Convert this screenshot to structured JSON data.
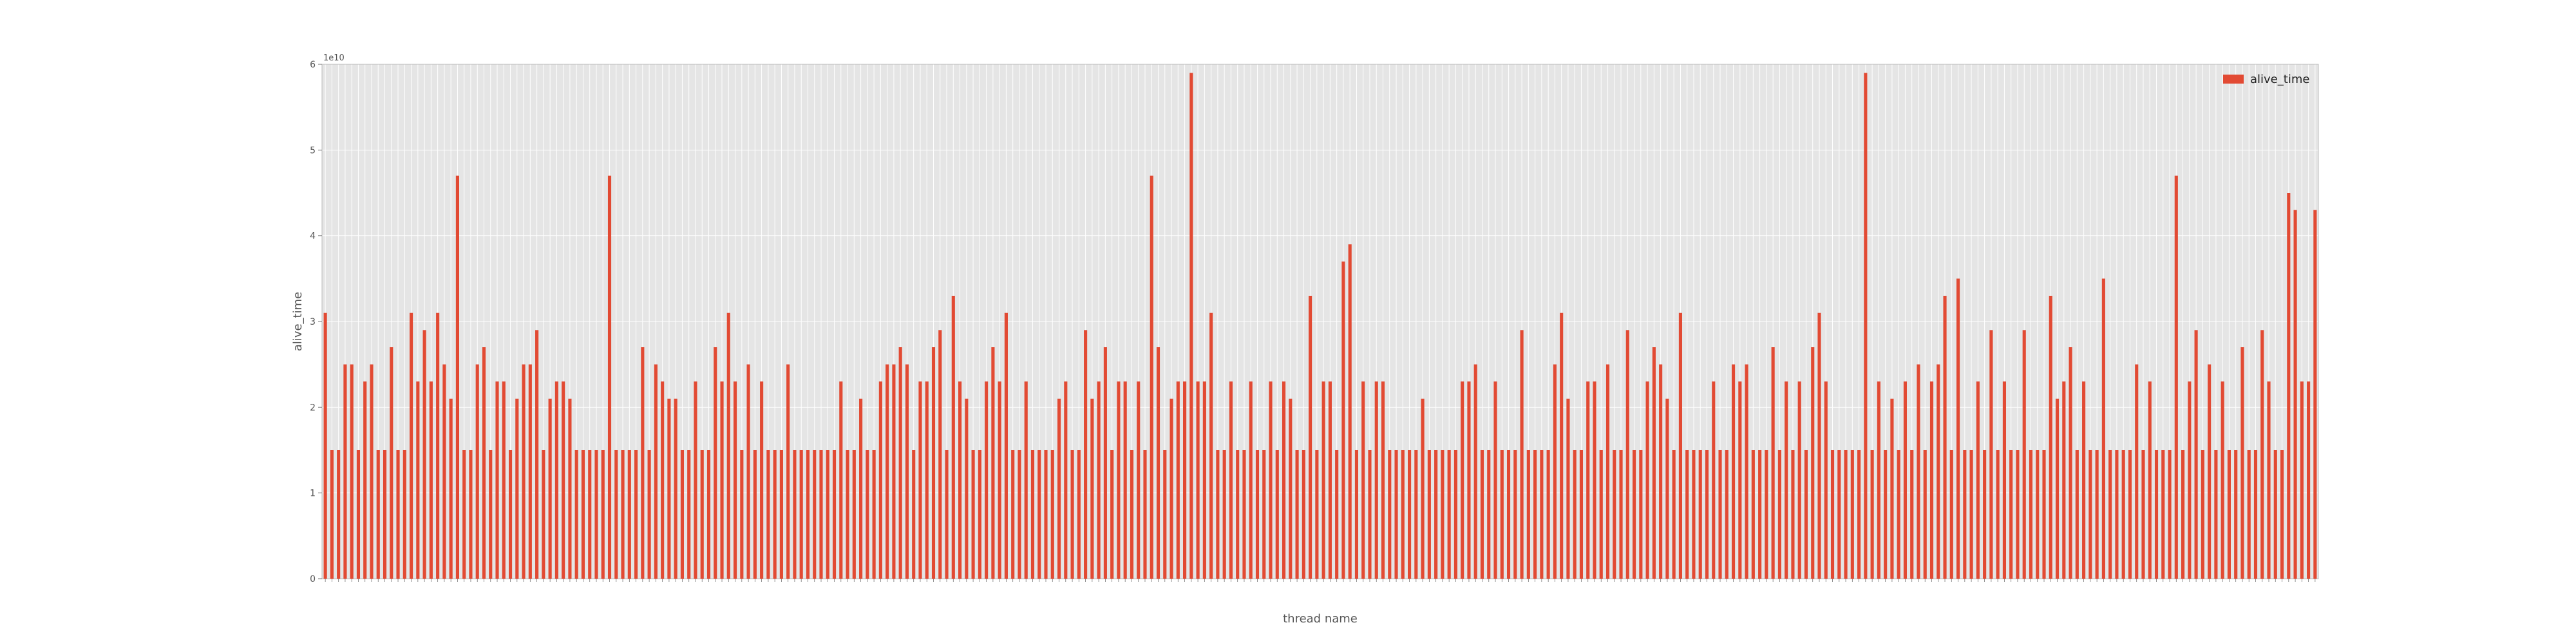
{
  "chart_data": {
    "type": "bar",
    "xlabel": "thread name",
    "ylabel": "alive_time",
    "offset_label": "1e10",
    "ylim": [
      0,
      6
    ],
    "yticks": [
      0,
      1,
      2,
      3,
      4,
      5,
      6
    ],
    "legend": {
      "position": "top-right"
    },
    "grid": true,
    "colors": {
      "bar": "#e24a33",
      "plot_bg": "#e5e5e5",
      "grid": "#ffffff",
      "spine": "#bbbbbb"
    },
    "series": [
      {
        "name": "alive_time",
        "values": [
          3.1,
          1.5,
          1.5,
          2.5,
          2.5,
          1.5,
          2.3,
          2.5,
          1.5,
          1.5,
          2.7,
          1.5,
          1.5,
          3.1,
          2.3,
          2.9,
          2.3,
          3.1,
          2.5,
          2.1,
          4.7,
          1.5,
          1.5,
          2.5,
          2.7,
          1.5,
          2.3,
          2.3,
          1.5,
          2.1,
          2.5,
          2.5,
          2.9,
          1.5,
          2.1,
          2.3,
          2.3,
          2.1,
          1.5,
          1.5,
          1.5,
          1.5,
          1.5,
          4.7,
          1.5,
          1.5,
          1.5,
          1.5,
          2.7,
          1.5,
          2.5,
          2.3,
          2.1,
          2.1,
          1.5,
          1.5,
          2.3,
          1.5,
          1.5,
          2.7,
          2.3,
          3.1,
          2.3,
          1.5,
          2.5,
          1.5,
          2.3,
          1.5,
          1.5,
          1.5,
          2.5,
          1.5,
          1.5,
          1.5,
          1.5,
          1.5,
          1.5,
          1.5,
          2.3,
          1.5,
          1.5,
          2.1,
          1.5,
          1.5,
          2.3,
          2.5,
          2.5,
          2.7,
          2.5,
          1.5,
          2.3,
          2.3,
          2.7,
          2.9,
          1.5,
          3.3,
          2.3,
          2.1,
          1.5,
          1.5,
          2.3,
          2.7,
          2.3,
          3.1,
          1.5,
          1.5,
          2.3,
          1.5,
          1.5,
          1.5,
          1.5,
          2.1,
          2.3,
          1.5,
          1.5,
          2.9,
          2.1,
          2.3,
          2.7,
          1.5,
          2.3,
          2.3,
          1.5,
          2.3,
          1.5,
          4.7,
          2.7,
          1.5,
          2.1,
          2.3,
          2.3,
          5.9,
          2.3,
          2.3,
          3.1,
          1.5,
          1.5,
          2.3,
          1.5,
          1.5,
          2.3,
          1.5,
          1.5,
          2.3,
          1.5,
          2.3,
          2.1,
          1.5,
          1.5,
          3.3,
          1.5,
          2.3,
          2.3,
          1.5,
          3.7,
          3.9,
          1.5,
          2.3,
          1.5,
          2.3,
          2.3,
          1.5,
          1.5,
          1.5,
          1.5,
          1.5,
          2.1,
          1.5,
          1.5,
          1.5,
          1.5,
          1.5,
          2.3,
          2.3,
          2.5,
          1.5,
          1.5,
          2.3,
          1.5,
          1.5,
          1.5,
          2.9,
          1.5,
          1.5,
          1.5,
          1.5,
          2.5,
          3.1,
          2.1,
          1.5,
          1.5,
          2.3,
          2.3,
          1.5,
          2.5,
          1.5,
          1.5,
          2.9,
          1.5,
          1.5,
          2.3,
          2.7,
          2.5,
          2.1,
          1.5,
          3.1,
          1.5,
          1.5,
          1.5,
          1.5,
          2.3,
          1.5,
          1.5,
          2.5,
          2.3,
          2.5,
          1.5,
          1.5,
          1.5,
          2.7,
          1.5,
          2.3,
          1.5,
          2.3,
          1.5,
          2.7,
          3.1,
          2.3,
          1.5,
          1.5,
          1.5,
          1.5,
          1.5,
          5.9,
          1.5,
          2.3,
          1.5,
          2.1,
          1.5,
          2.3,
          1.5,
          2.5,
          1.5,
          2.3,
          2.5,
          3.3,
          1.5,
          3.5,
          1.5,
          1.5,
          2.3,
          1.5,
          2.9,
          1.5,
          2.3,
          1.5,
          1.5,
          2.9,
          1.5,
          1.5,
          1.5,
          3.3,
          2.1,
          2.3,
          2.7,
          1.5,
          2.3,
          1.5,
          1.5,
          3.5,
          1.5,
          1.5,
          1.5,
          1.5,
          2.5,
          1.5,
          2.3,
          1.5,
          1.5,
          1.5,
          4.7,
          1.5,
          2.3,
          2.9,
          1.5,
          2.5,
          1.5,
          2.3,
          1.5,
          1.5,
          2.7,
          1.5,
          1.5,
          2.9,
          2.3,
          1.5,
          1.5,
          4.5,
          4.3,
          2.3,
          2.3,
          4.3
        ]
      }
    ]
  }
}
